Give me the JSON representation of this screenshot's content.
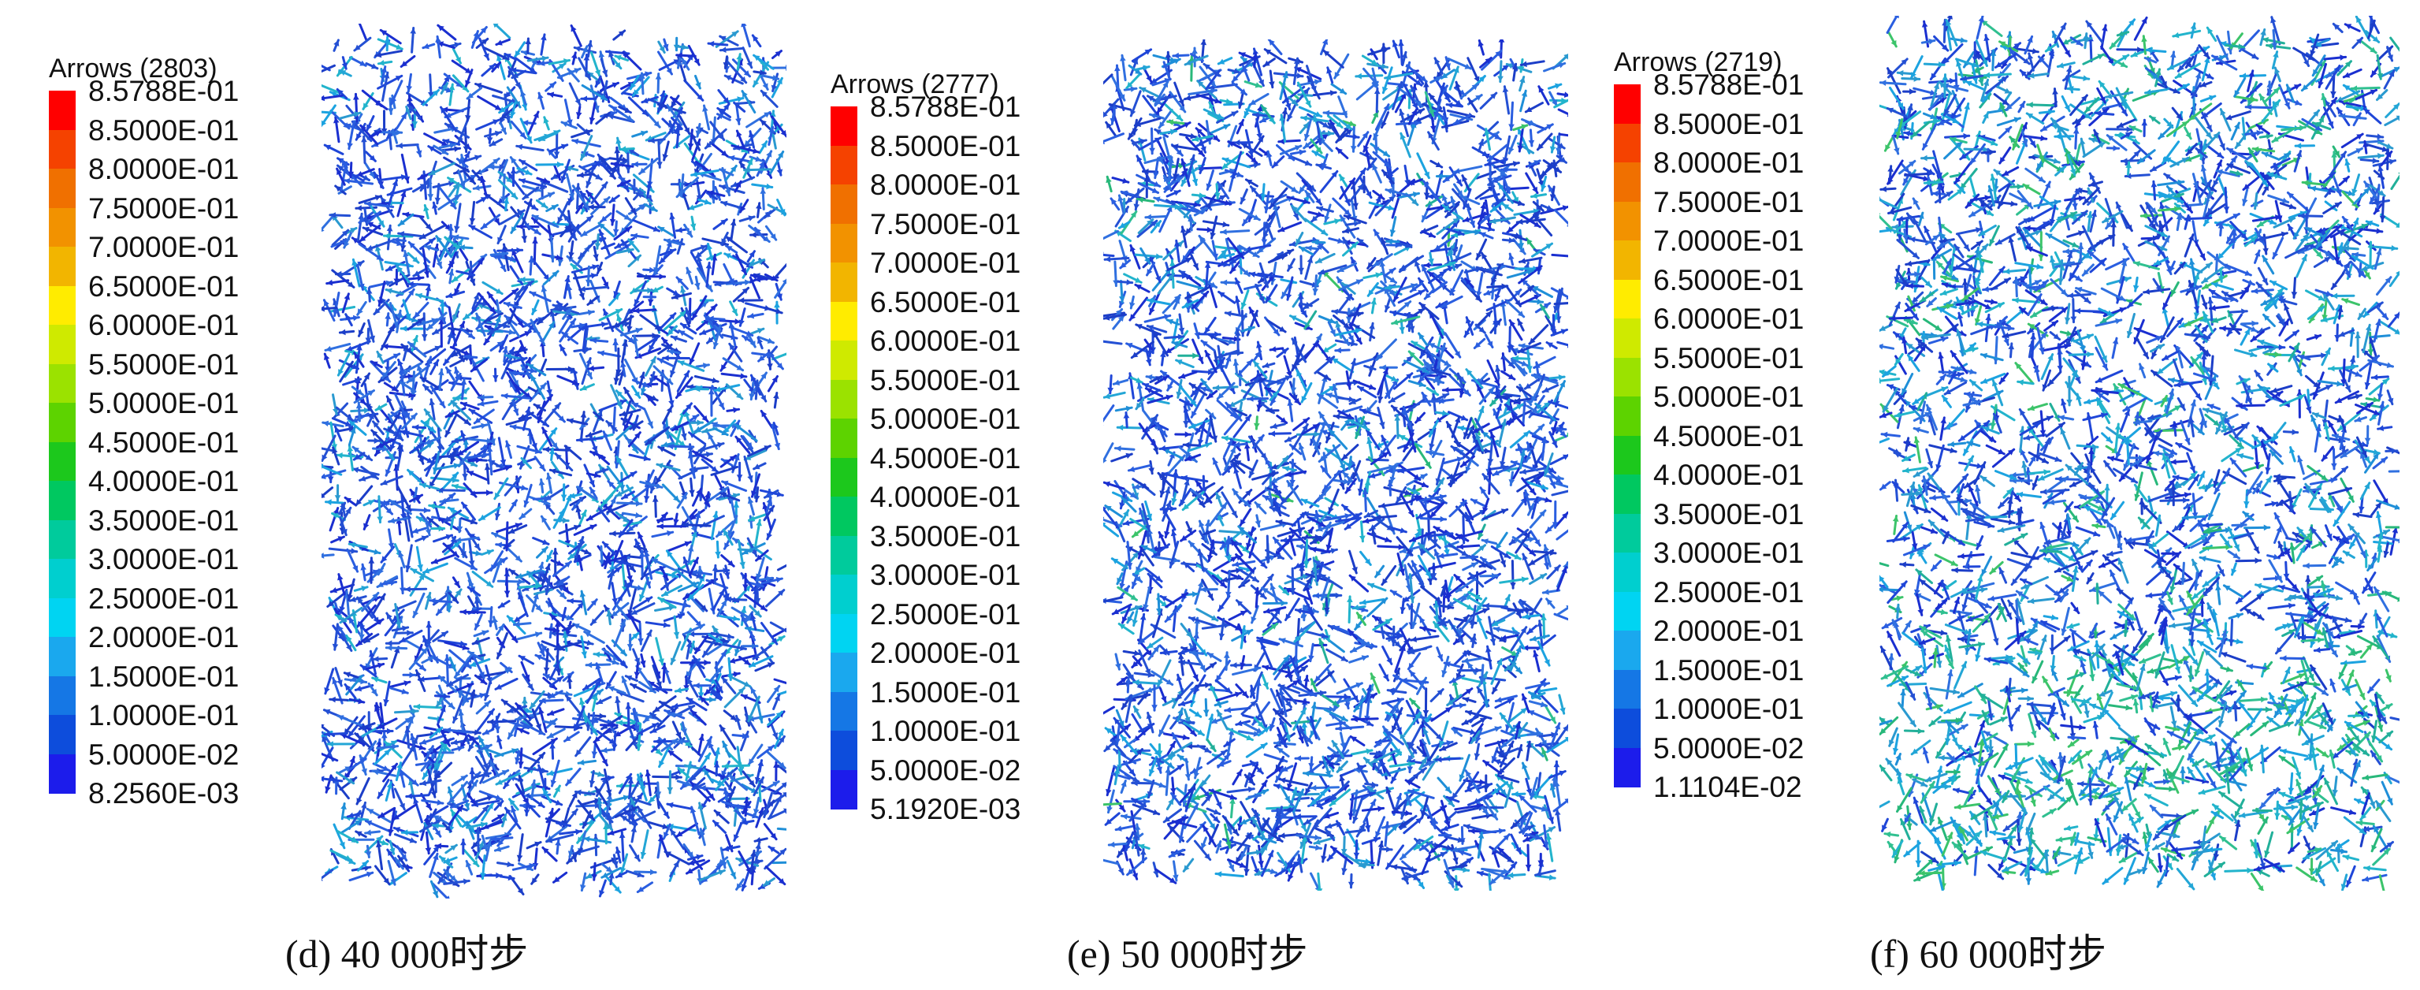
{
  "colors": [
    "#FF0000",
    "#F54200",
    "#F07000",
    "#F29200",
    "#F2B500",
    "#FFEC00",
    "#CFEA00",
    "#9BE200",
    "#5DD300",
    "#1CC81C",
    "#00C860",
    "#00CB9C",
    "#00CFCF",
    "#00D4F2",
    "#1AA8EE",
    "#1577E5",
    "#0D4DDC",
    "#1C1CEB"
  ],
  "panels": [
    {
      "legend_title": "Arrows (2803)",
      "legend_labels": [
        "8.5788E-01",
        "8.5000E-01",
        "8.0000E-01",
        "7.5000E-01",
        "7.0000E-01",
        "6.5000E-01",
        "6.0000E-01",
        "5.5000E-01",
        "5.0000E-01",
        "4.5000E-01",
        "4.0000E-01",
        "3.5000E-01",
        "3.0000E-01",
        "2.5000E-01",
        "2.0000E-01",
        "1.5000E-01",
        "1.0000E-01",
        "5.0000E-02",
        "8.2560E-03"
      ],
      "caption": "(d) 40 000时步",
      "field_color_mix": {
        "blue": 0.82,
        "cyan": 0.18,
        "green": 0.0
      }
    },
    {
      "legend_title": "Arrows (2777)",
      "legend_labels": [
        "8.5788E-01",
        "8.5000E-01",
        "8.0000E-01",
        "7.5000E-01",
        "7.0000E-01",
        "6.5000E-01",
        "6.0000E-01",
        "5.5000E-01",
        "5.0000E-01",
        "4.5000E-01",
        "4.0000E-01",
        "3.5000E-01",
        "3.0000E-01",
        "2.5000E-01",
        "2.0000E-01",
        "1.5000E-01",
        "1.0000E-01",
        "5.0000E-02",
        "5.1920E-03"
      ],
      "caption": "(e) 50 000时步",
      "field_color_mix": {
        "blue": 0.78,
        "cyan": 0.2,
        "green": 0.02
      }
    },
    {
      "legend_title": "Arrows (2719)",
      "legend_labels": [
        "8.5788E-01",
        "8.5000E-01",
        "8.0000E-01",
        "7.5000E-01",
        "7.0000E-01",
        "6.5000E-01",
        "6.0000E-01",
        "5.5000E-01",
        "5.0000E-01",
        "4.5000E-01",
        "4.0000E-01",
        "3.5000E-01",
        "3.0000E-01",
        "2.5000E-01",
        "2.0000E-01",
        "1.5000E-01",
        "1.0000E-01",
        "5.0000E-02",
        "1.1104E-02"
      ],
      "caption": "(f) 60 000时步",
      "field_color_mix": {
        "blue": 0.6,
        "cyan": 0.3,
        "green": 0.1
      }
    }
  ]
}
